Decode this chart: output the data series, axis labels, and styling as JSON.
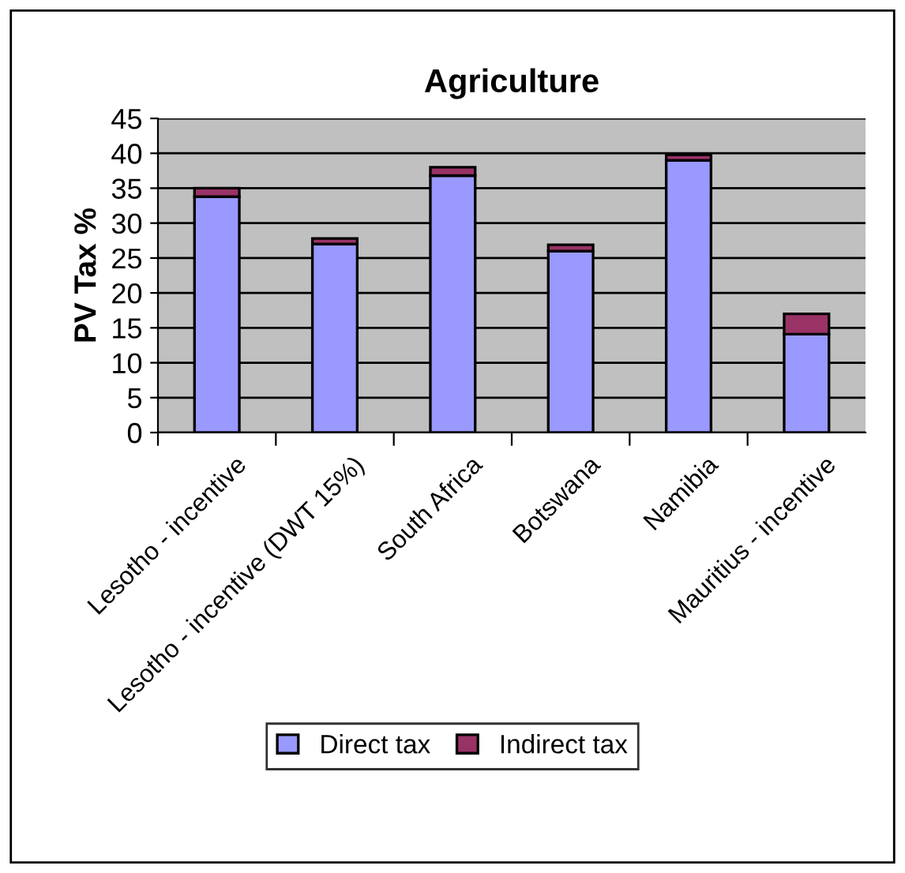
{
  "chart_data": {
    "type": "bar",
    "title": "Agriculture",
    "ylabel": "PV Tax %",
    "categories": [
      "Lesotho - incentive",
      "Lesotho - incentive (DWT 15%)",
      "South Africa",
      "Botswana",
      "Namibia",
      "Mauritius - incentive"
    ],
    "series": [
      {
        "name": "Direct tax",
        "color": "#9999ff",
        "values": [
          33.8,
          27,
          36.8,
          26,
          39,
          14.1
        ]
      },
      {
        "name": "Indirect tax",
        "color": "#993366",
        "values": [
          1.2,
          0.8,
          1.2,
          0.9,
          0.8,
          2.9
        ]
      }
    ],
    "stacked": true,
    "ylim": [
      0,
      45
    ],
    "yticks": [
      0,
      5,
      10,
      15,
      20,
      25,
      30,
      35,
      40,
      45
    ],
    "grid": "y",
    "legend": "bottom"
  }
}
